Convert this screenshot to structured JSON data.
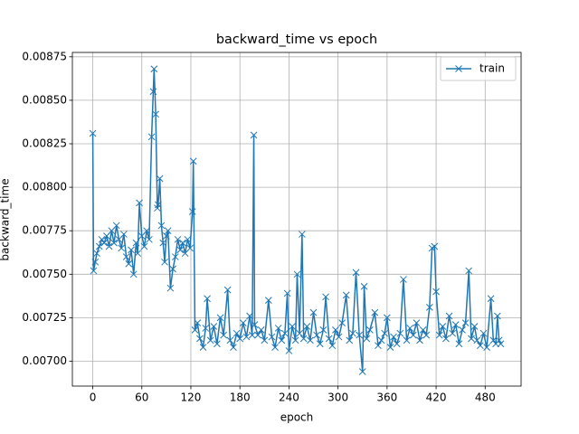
{
  "chart_data": {
    "type": "line",
    "title": "backward_time vs epoch",
    "x_label": "epoch",
    "y_label": "backward_time",
    "xlim": [
      -24.95,
      523.95
    ],
    "ylim": [
      0.006857,
      0.008775
    ],
    "xticks": [
      0,
      60,
      120,
      180,
      240,
      300,
      360,
      420,
      480
    ],
    "yticks": [
      {
        "value": 0.007,
        "label": "0.00700"
      },
      {
        "value": 0.00725,
        "label": "0.00725"
      },
      {
        "value": 0.0075,
        "label": "0.00750"
      },
      {
        "value": 0.00775,
        "label": "0.00775"
      },
      {
        "value": 0.008,
        "label": "0.00800"
      },
      {
        "value": 0.00825,
        "label": "0.00825"
      },
      {
        "value": 0.0085,
        "label": "0.00850"
      },
      {
        "value": 0.00875,
        "label": "0.00875"
      }
    ],
    "grid": true,
    "legend": "upper right",
    "x": [
      0,
      1,
      3,
      5,
      8,
      11,
      14,
      17,
      20,
      23,
      26,
      29,
      32,
      35,
      38,
      41,
      44,
      47,
      50,
      53,
      55,
      57,
      60,
      63,
      66,
      69,
      72,
      74,
      75,
      77,
      79,
      80,
      82,
      84,
      86,
      88,
      90,
      92,
      95,
      98,
      101,
      104,
      107,
      110,
      113,
      116,
      119,
      122,
      123,
      125,
      128,
      131,
      135,
      138,
      140,
      144,
      148,
      152,
      156,
      160,
      165,
      168,
      172,
      176,
      180,
      184,
      188,
      192,
      195,
      197,
      198,
      202,
      206,
      210,
      215,
      219,
      223,
      227,
      231,
      235,
      238,
      240,
      244,
      248,
      250,
      253,
      256,
      258,
      262,
      266,
      270,
      274,
      278,
      282,
      285,
      289,
      293,
      297,
      301,
      305,
      310,
      314,
      318,
      322,
      326,
      330,
      332,
      335,
      339,
      345,
      349,
      353,
      357,
      360,
      364,
      368,
      372,
      376,
      380,
      384,
      388,
      392,
      396,
      400,
      404,
      408,
      412,
      415,
      418,
      420,
      424,
      428,
      432,
      436,
      440,
      444,
      448,
      452,
      456,
      460,
      463,
      467,
      470,
      474,
      478,
      482,
      487,
      490,
      493,
      495,
      497,
      499
    ],
    "series": [
      {
        "name": "train",
        "color": "#1f77b4",
        "values": [
          0.00831,
          0.00752,
          0.00757,
          0.00762,
          0.00766,
          0.0077,
          0.00768,
          0.00772,
          0.00766,
          0.00775,
          0.00768,
          0.00778,
          0.0077,
          0.00765,
          0.00773,
          0.0076,
          0.00756,
          0.00764,
          0.0075,
          0.00768,
          0.00762,
          0.00791,
          0.00772,
          0.00766,
          0.00775,
          0.0077,
          0.00829,
          0.00855,
          0.00868,
          0.00842,
          0.00788,
          0.0079,
          0.00805,
          0.00778,
          0.00768,
          0.00757,
          0.00772,
          0.00775,
          0.00742,
          0.00753,
          0.0076,
          0.0077,
          0.00764,
          0.00768,
          0.00762,
          0.0077,
          0.00765,
          0.00786,
          0.00815,
          0.00718,
          0.00722,
          0.00713,
          0.00708,
          0.00719,
          0.00736,
          0.00712,
          0.0072,
          0.0071,
          0.00725,
          0.00715,
          0.00741,
          0.00712,
          0.00708,
          0.00716,
          0.00713,
          0.00722,
          0.00714,
          0.00726,
          0.00715,
          0.0083,
          0.00721,
          0.00715,
          0.00718,
          0.00712,
          0.00735,
          0.00714,
          0.00708,
          0.00719,
          0.00712,
          0.00716,
          0.00739,
          0.00706,
          0.0072,
          0.00712,
          0.0075,
          0.00716,
          0.00773,
          0.00713,
          0.0072,
          0.00712,
          0.00728,
          0.00715,
          0.0071,
          0.00718,
          0.00737,
          0.00713,
          0.00709,
          0.00718,
          0.00714,
          0.00722,
          0.00738,
          0.00712,
          0.00716,
          0.00751,
          0.00715,
          0.00694,
          0.00743,
          0.00713,
          0.00718,
          0.00728,
          0.00709,
          0.00712,
          0.00716,
          0.00725,
          0.00708,
          0.00714,
          0.0071,
          0.00716,
          0.00747,
          0.00712,
          0.00719,
          0.00715,
          0.00722,
          0.00712,
          0.00718,
          0.00715,
          0.00731,
          0.00765,
          0.00766,
          0.0074,
          0.00715,
          0.0072,
          0.00713,
          0.00726,
          0.00716,
          0.00721,
          0.0071,
          0.00718,
          0.00722,
          0.00752,
          0.00713,
          0.0072,
          0.00712,
          0.00709,
          0.00716,
          0.00708,
          0.00736,
          0.00712,
          0.0071,
          0.00726,
          0.00712,
          0.0071
        ]
      }
    ]
  }
}
